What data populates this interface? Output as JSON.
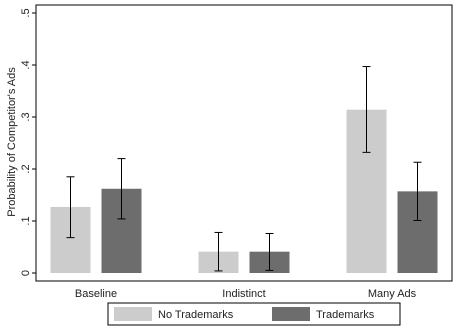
{
  "chart_data": {
    "type": "bar",
    "title": "",
    "xlabel": "",
    "ylabel": "Probability of Competitor's Ads",
    "categories": [
      "Baseline",
      "Indistinct",
      "Many Ads"
    ],
    "ylim": [
      0,
      0.5
    ],
    "yticks": [
      0,
      0.1,
      0.2,
      0.3,
      0.4,
      0.5
    ],
    "ytick_labels": [
      "0",
      ".1",
      ".2",
      ".3",
      ".4",
      ".5"
    ],
    "grid": false,
    "legend_position": "bottom",
    "series": [
      {
        "name": "No Trademarks",
        "color": "#cccccc",
        "values": [
          0.127,
          0.041,
          0.314
        ],
        "ci_low": [
          0.068,
          0.004,
          0.232
        ],
        "ci_high": [
          0.185,
          0.078,
          0.397
        ]
      },
      {
        "name": "Trademarks",
        "color": "#6d6d6d",
        "values": [
          0.162,
          0.041,
          0.157
        ],
        "ci_low": [
          0.104,
          0.005,
          0.101
        ],
        "ci_high": [
          0.22,
          0.076,
          0.213
        ]
      }
    ]
  }
}
